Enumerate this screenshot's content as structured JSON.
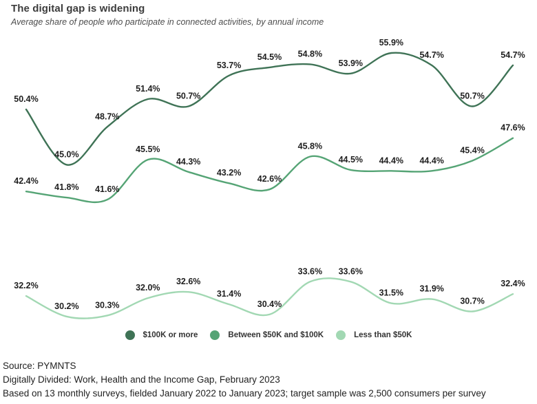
{
  "header": {
    "title": "The digital gap is widening",
    "subtitle": "Average share of people who participate in connected activities, by annual income"
  },
  "chart_data": {
    "type": "line",
    "title": "The digital gap is widening",
    "subtitle": "Average share of people who participate in connected activities, by annual income",
    "num_points": 13,
    "x_axis": {
      "labels_visible": false,
      "period": "13 monthly surveys, January 2022 to January 2023"
    },
    "y_axis": {
      "labels_visible": false,
      "unit": "%",
      "ylim": [
        28,
        58
      ]
    },
    "grid": false,
    "legend_position": "bottom",
    "data_labels": "percent with one decimal shown at every point",
    "series": [
      {
        "name": "$100K or more",
        "color": "#3f7356",
        "values": [
          50.4,
          45.0,
          48.7,
          51.4,
          50.7,
          53.7,
          54.5,
          54.8,
          53.9,
          55.9,
          54.7,
          50.7,
          54.7
        ]
      },
      {
        "name": "Between $50K and $100K",
        "color": "#55a475",
        "values": [
          42.4,
          41.8,
          41.6,
          45.5,
          44.3,
          43.2,
          42.6,
          45.8,
          44.5,
          44.4,
          44.4,
          45.4,
          47.6
        ]
      },
      {
        "name": "Less than $50K",
        "color": "#a2d8b3",
        "values": [
          32.2,
          30.2,
          30.3,
          32.0,
          32.6,
          31.4,
          30.4,
          33.6,
          33.6,
          31.5,
          31.9,
          30.7,
          32.4
        ]
      }
    ]
  },
  "footer": {
    "line1": "Source: PYMNTS",
    "line2": "Digitally Divided: Work, Health and the Income Gap, February 2023",
    "line3": "Based on 13 monthly surveys, fielded January 2022 to January 2023; target sample was 2,500 consumers per survey"
  }
}
